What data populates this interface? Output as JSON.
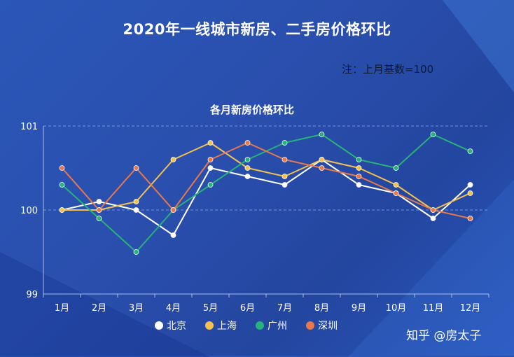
{
  "page": {
    "title": "2020年一线城市新房、二手房价格环比",
    "note": "注：上月基数=100",
    "watermark": "知乎 @房太子"
  },
  "chart_data": {
    "type": "line",
    "title": "各月新房价格环比",
    "categories": [
      "1月",
      "2月",
      "3月",
      "4月",
      "5月",
      "6月",
      "7月",
      "8月",
      "9月",
      "10月",
      "11月",
      "12月"
    ],
    "y_ticks": [
      99,
      100,
      101
    ],
    "ylim": [
      99,
      101
    ],
    "grid": "dashed horizontal at 100 and 101",
    "legend_position": "bottom",
    "series": [
      {
        "name": "北京",
        "color": "#ffffff",
        "values": [
          100.0,
          100.1,
          100.0,
          99.7,
          100.5,
          100.4,
          100.3,
          100.6,
          100.3,
          100.2,
          99.9,
          100.3
        ]
      },
      {
        "name": "上海",
        "color": "#f2c14e",
        "values": [
          100.0,
          100.0,
          100.1,
          100.6,
          100.8,
          100.5,
          100.4,
          100.6,
          100.5,
          100.3,
          100.0,
          100.2
        ]
      },
      {
        "name": "广州",
        "color": "#26b27a",
        "values": [
          100.3,
          99.9,
          99.5,
          100.0,
          100.3,
          100.6,
          100.8,
          100.9,
          100.6,
          100.5,
          100.9,
          100.7
        ]
      },
      {
        "name": "深圳",
        "color": "#e8784a",
        "values": [
          100.5,
          100.0,
          100.5,
          100.0,
          100.6,
          100.8,
          100.6,
          100.5,
          100.4,
          100.2,
          100.0,
          99.9
        ]
      }
    ]
  }
}
